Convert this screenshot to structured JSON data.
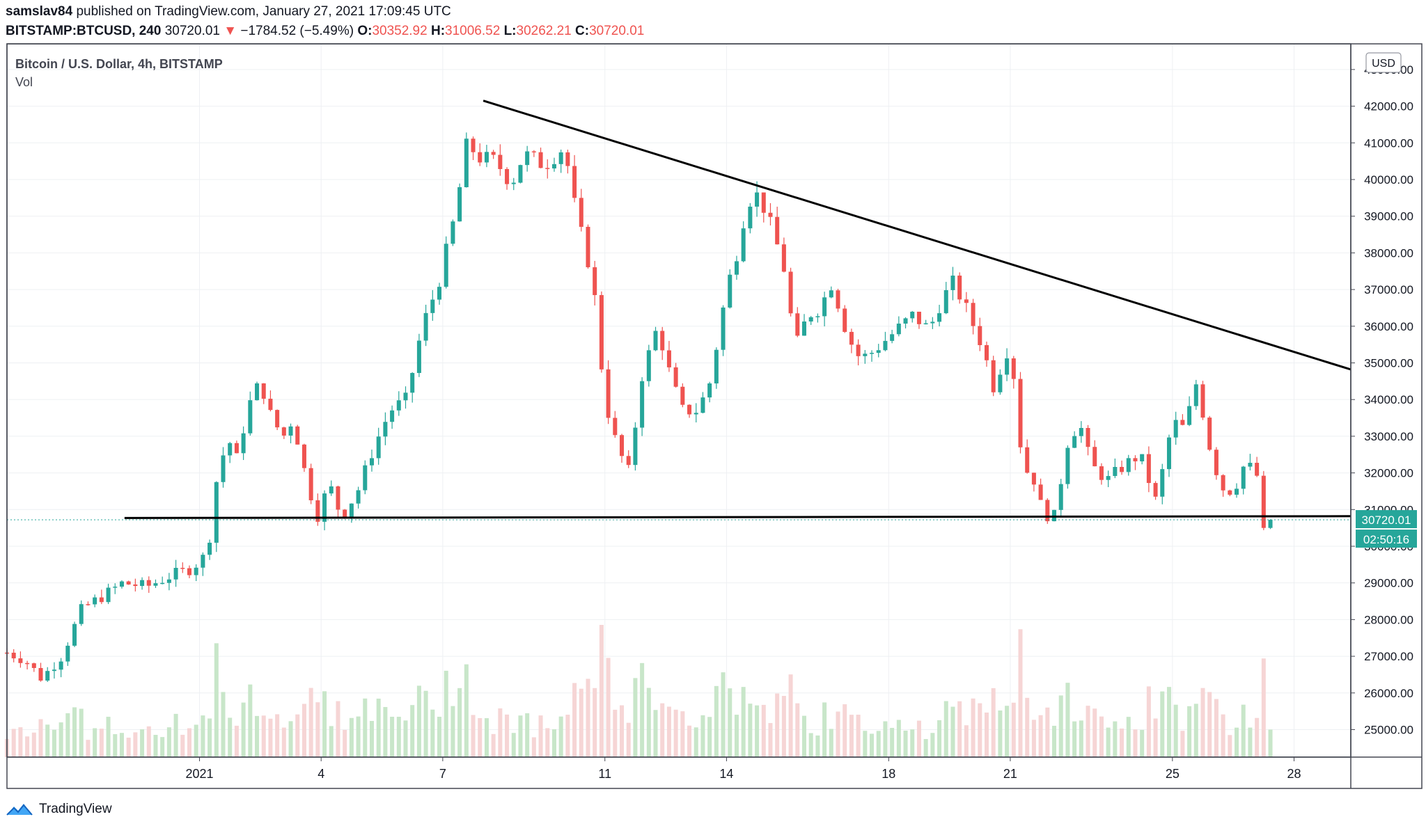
{
  "header": {
    "author": "samslav84",
    "published_text": "published on TradingView.com, January 27, 2021 17:09:45 UTC"
  },
  "ohlc_bar": {
    "symbol": "BITSTAMP:BTCUSD, 240",
    "last": "30720.01",
    "change": "−1784.52 (−5.49%)",
    "o_label": "O:",
    "o": "30352.92",
    "h_label": "H:",
    "h": "31006.52",
    "l_label": "L:",
    "l": "30262.21",
    "c_label": "C:",
    "c": "30720.01"
  },
  "legend": {
    "series_title": "Bitcoin / U.S. Dollar, 4h, BITSTAMP",
    "volume_label": "Vol"
  },
  "currency_button": "USD",
  "price_tag": "30720.01",
  "countdown_tag": "02:50:16",
  "footer": {
    "brand": "TradingView"
  },
  "colors": {
    "up": "#26a69a",
    "down": "#ef5350",
    "up_volume": "#c8e6c9",
    "down_volume": "#f6d5d5",
    "grid": "#eef0f3"
  },
  "chart_data": {
    "type": "candlestick",
    "title": "Bitcoin / U.S. Dollar, 4h, BITSTAMP",
    "x_ticks": [
      {
        "label": "2021",
        "day": 1
      },
      {
        "label": "4",
        "day": 4
      },
      {
        "label": "7",
        "day": 7
      },
      {
        "label": "11",
        "day": 11
      },
      {
        "label": "14",
        "day": 14
      },
      {
        "label": "18",
        "day": 18
      },
      {
        "label": "21",
        "day": 21
      },
      {
        "label": "25",
        "day": 25
      },
      {
        "label": "28",
        "day": 28
      }
    ],
    "y_ticks": [
      25000,
      26000,
      27000,
      28000,
      29000,
      30000,
      31000,
      32000,
      33000,
      34000,
      35000,
      36000,
      37000,
      38000,
      39000,
      40000,
      41000,
      42000,
      43000
    ],
    "y_tick_labels": [
      "25000.00",
      "26000.00",
      "27000.00",
      "28000.00",
      "29000.00",
      "30000.00",
      "31000.00",
      "32000.00",
      "33000.00",
      "34000.00",
      "35000.00",
      "36000.00",
      "37000.00",
      "38000.00",
      "39000.00",
      "40000.00",
      "41000.00",
      "42000.00",
      "43000.00"
    ],
    "ylim": [
      24250,
      43700
    ],
    "x_range_days": [
      -3.75,
      29.4
    ],
    "price_keypoints": [
      [
        -3.75,
        27100
      ],
      [
        -3.3,
        26900
      ],
      [
        -2.9,
        26400
      ],
      [
        -2.4,
        27000
      ],
      [
        -1.9,
        28300
      ],
      [
        -1.3,
        28700
      ],
      [
        -0.9,
        29000
      ],
      [
        -0.3,
        28900
      ],
      [
        0.3,
        29200
      ],
      [
        0.8,
        29400
      ],
      [
        1.2,
        29800
      ],
      [
        1.4,
        31700
      ],
      [
        1.7,
        33000
      ],
      [
        1.9,
        32300
      ],
      [
        2.2,
        33800
      ],
      [
        2.5,
        34500
      ],
      [
        2.8,
        33400
      ],
      [
        3.1,
        33000
      ],
      [
        3.3,
        33500
      ],
      [
        3.6,
        32000
      ],
      [
        3.9,
        30800
      ],
      [
        4.2,
        31700
      ],
      [
        4.5,
        30800
      ],
      [
        4.9,
        31500
      ],
      [
        5.3,
        32700
      ],
      [
        5.7,
        33700
      ],
      [
        6.1,
        34000
      ],
      [
        6.5,
        36000
      ],
      [
        6.9,
        37200
      ],
      [
        7.3,
        39000
      ],
      [
        7.6,
        41000
      ],
      [
        7.9,
        40600
      ],
      [
        8.3,
        40500
      ],
      [
        8.7,
        39900
      ],
      [
        9.0,
        40700
      ],
      [
        9.5,
        40400
      ],
      [
        10.0,
        40900
      ],
      [
        10.3,
        39000
      ],
      [
        10.7,
        37300
      ],
      [
        11.0,
        34000
      ],
      [
        11.3,
        32700
      ],
      [
        11.6,
        32000
      ],
      [
        11.9,
        34600
      ],
      [
        12.3,
        36000
      ],
      [
        12.6,
        34700
      ],
      [
        12.9,
        33700
      ],
      [
        13.3,
        33700
      ],
      [
        13.6,
        34500
      ],
      [
        14.0,
        37000
      ],
      [
        14.3,
        38200
      ],
      [
        14.5,
        39400
      ],
      [
        14.8,
        39600
      ],
      [
        15.1,
        38700
      ],
      [
        15.4,
        37700
      ],
      [
        15.7,
        35400
      ],
      [
        16.0,
        36300
      ],
      [
        16.3,
        36500
      ],
      [
        16.6,
        37200
      ],
      [
        17.0,
        35700
      ],
      [
        17.3,
        35100
      ],
      [
        17.6,
        35300
      ],
      [
        17.9,
        35600
      ],
      [
        18.3,
        36000
      ],
      [
        18.6,
        36300
      ],
      [
        19.0,
        35900
      ],
      [
        19.3,
        36700
      ],
      [
        19.6,
        37200
      ],
      [
        19.9,
        36500
      ],
      [
        20.3,
        35500
      ],
      [
        20.6,
        34300
      ],
      [
        20.9,
        35400
      ],
      [
        21.1,
        34600
      ],
      [
        21.3,
        32200
      ],
      [
        21.6,
        31800
      ],
      [
        21.8,
        30900
      ],
      [
        22.1,
        30800
      ],
      [
        22.4,
        32800
      ],
      [
        22.7,
        33400
      ],
      [
        23.0,
        32200
      ],
      [
        23.4,
        31800
      ],
      [
        23.8,
        32200
      ],
      [
        24.2,
        32500
      ],
      [
        24.6,
        31200
      ],
      [
        25.0,
        33400
      ],
      [
        25.3,
        33200
      ],
      [
        25.6,
        34500
      ],
      [
        25.9,
        32800
      ],
      [
        26.2,
        31600
      ],
      [
        26.5,
        31500
      ],
      [
        26.8,
        32300
      ],
      [
        27.1,
        31900
      ],
      [
        27.25,
        30350
      ],
      [
        27.5,
        30720
      ]
    ],
    "trendlines": [
      {
        "name": "descending-resistance",
        "points": [
          [
            8.0,
            42150
          ],
          [
            29.4,
            34820
          ]
        ]
      },
      {
        "name": "horizontal-support",
        "points": [
          [
            -0.85,
            30770
          ],
          [
            29.4,
            30820
          ]
        ]
      }
    ],
    "last_price": 30720.01
  }
}
